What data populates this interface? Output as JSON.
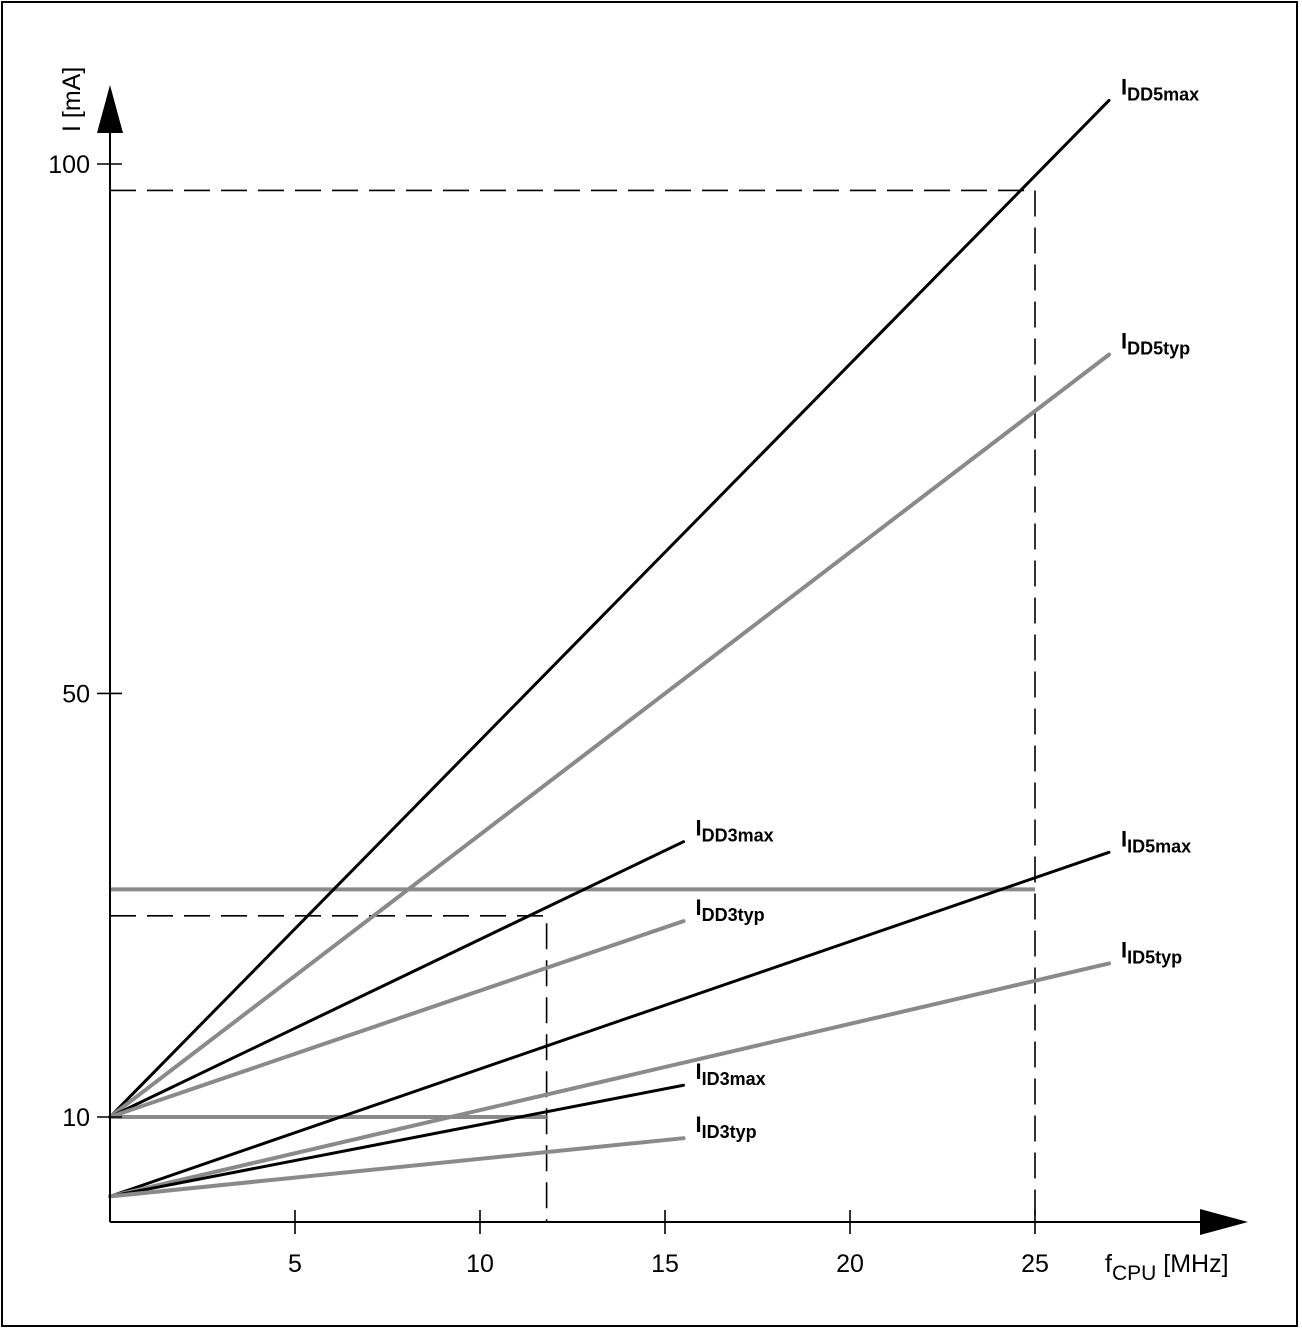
{
  "chart_data": {
    "type": "line",
    "title": "",
    "xlabel": {
      "main": "f",
      "sub": "CPU",
      "unit": " [MHz]"
    },
    "ylabel": "I [mA]",
    "x_ticks": [
      5,
      10,
      15,
      20,
      25
    ],
    "y_ticks": [
      10,
      50,
      100
    ],
    "xlim": [
      0,
      27.5
    ],
    "ylim": [
      3,
      105
    ],
    "grid": false,
    "series": [
      {
        "name": "DD5max",
        "style": "solid",
        "points": [
          [
            0,
            10
          ],
          [
            27,
            106
          ]
        ]
      },
      {
        "name": "DD5typ",
        "style": "shaded",
        "points": [
          [
            0,
            10
          ],
          [
            27,
            82
          ]
        ]
      },
      {
        "name": "DD3max",
        "style": "solid",
        "points": [
          [
            0,
            10
          ],
          [
            15.5,
            36
          ]
        ]
      },
      {
        "name": "DD3typ",
        "style": "shaded",
        "points": [
          [
            0,
            10
          ],
          [
            15.5,
            28.5
          ]
        ]
      },
      {
        "name": "ID5max",
        "style": "solid",
        "points": [
          [
            0,
            2.5
          ],
          [
            27,
            35
          ]
        ]
      },
      {
        "name": "ID5typ",
        "style": "shaded",
        "points": [
          [
            0,
            2.5
          ],
          [
            27,
            24.5
          ]
        ]
      },
      {
        "name": "ID3max",
        "style": "solid",
        "points": [
          [
            0,
            2.5
          ],
          [
            15.5,
            13
          ]
        ]
      },
      {
        "name": "ID3typ",
        "style": "shaded",
        "points": [
          [
            0,
            2.5
          ],
          [
            15.5,
            8
          ]
        ]
      }
    ],
    "reference_lines": [
      {
        "style": "dashed",
        "points": [
          [
            0,
            97.5
          ],
          [
            25,
            97.5
          ],
          [
            25,
            0
          ]
        ]
      },
      {
        "style": "dashed",
        "points": [
          [
            0,
            29
          ],
          [
            11.8,
            29
          ],
          [
            11.8,
            0
          ]
        ]
      },
      {
        "style": "shaded",
        "points": [
          [
            0,
            31.5
          ],
          [
            25,
            31.5
          ]
        ]
      },
      {
        "style": "shaded",
        "points": [
          [
            0,
            10
          ],
          [
            11.8,
            10
          ]
        ]
      }
    ],
    "colors": {
      "solid": "#000000",
      "shaded": "#8a8a8a",
      "axis": "#000000"
    }
  }
}
